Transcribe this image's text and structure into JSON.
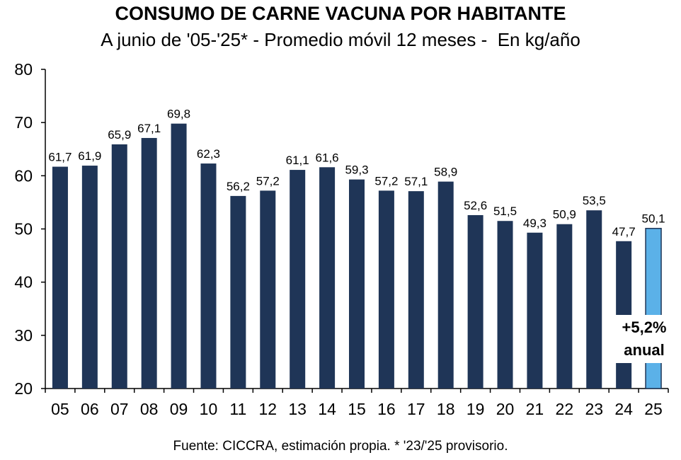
{
  "chart_data": {
    "type": "bar",
    "title": "CONSUMO DE CARNE VACUNA POR HABITANTE",
    "subtitle": "A junio de '05-'25* - Promedio móvil 12 meses -  En kg/año",
    "categories": [
      "05",
      "06",
      "07",
      "08",
      "09",
      "10",
      "11",
      "12",
      "13",
      "14",
      "15",
      "16",
      "17",
      "18",
      "19",
      "20",
      "21",
      "22",
      "23",
      "24",
      "25"
    ],
    "values": [
      61.7,
      61.9,
      65.9,
      67.1,
      69.8,
      62.3,
      56.2,
      57.2,
      61.1,
      61.6,
      59.3,
      57.2,
      57.1,
      58.9,
      52.6,
      51.5,
      49.3,
      50.9,
      53.5,
      47.7,
      50.1
    ],
    "value_labels": [
      "61,7",
      "61,9",
      "65,9",
      "67,1",
      "69,8",
      "62,3",
      "56,2",
      "57,2",
      "61,1",
      "61,6",
      "59,3",
      "57,2",
      "57,1",
      "58,9",
      "52,6",
      "51,5",
      "49,3",
      "50,9",
      "53,5",
      "47,7",
      "50,1"
    ],
    "ylim": [
      20,
      80
    ],
    "yticks": [
      20,
      30,
      40,
      50,
      60,
      70,
      80
    ],
    "grid": false,
    "colors": {
      "bar": "#1f3557",
      "highlight": "#5bb1e8",
      "highlight_border": "#1f3557"
    },
    "highlight_index": 20,
    "annotation": {
      "line1": "+5,2%",
      "line2": "anual"
    }
  },
  "source": "Fuente: CICCRA, estimación propia. * '23/'25 provisorio."
}
